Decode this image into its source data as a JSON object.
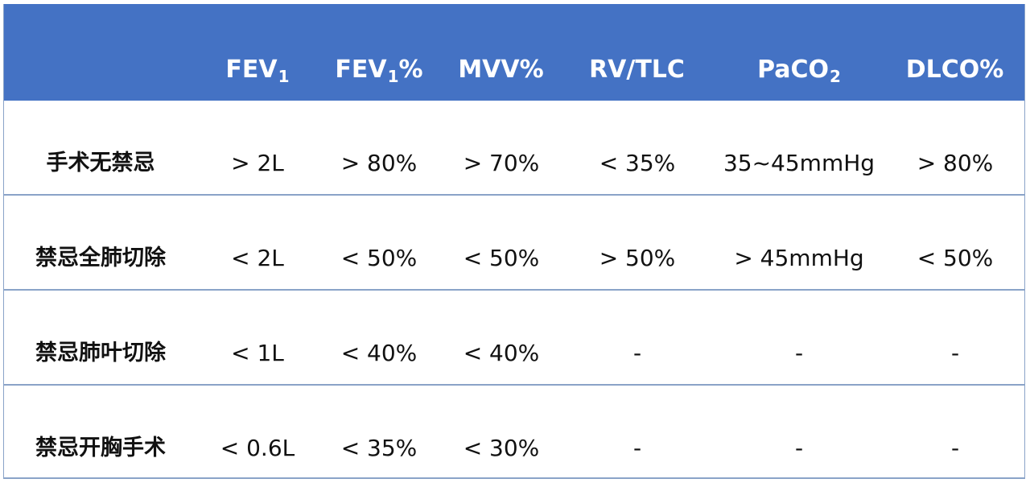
{
  "table": {
    "headers": [
      {
        "main": "FEV",
        "sub": "1",
        "suffix": ""
      },
      {
        "main": "FEV",
        "sub": "1",
        "suffix": "%"
      },
      {
        "main": "MVV%",
        "sub": "",
        "suffix": ""
      },
      {
        "main": "RV/TLC",
        "sub": "",
        "suffix": ""
      },
      {
        "main": "PaCO",
        "sub": "2",
        "suffix": ""
      },
      {
        "main": "DLCO%",
        "sub": "",
        "suffix": ""
      }
    ],
    "rows": [
      {
        "label": "手术无禁忌",
        "cells": [
          "> 2L",
          "> 80%",
          "> 70%",
          "< 35%",
          "35~45mmHg",
          "> 80%"
        ]
      },
      {
        "label": "禁忌全肺切除",
        "cells": [
          "< 2L",
          "< 50%",
          "< 50%",
          "> 50%",
          "> 45mmHg",
          "< 50%"
        ]
      },
      {
        "label": "禁忌肺叶切除",
        "cells": [
          "< 1L",
          "< 40%",
          "< 40%",
          "-",
          "-",
          "-"
        ]
      },
      {
        "label": "禁忌开胸手术",
        "cells": [
          "< 0.6L",
          "< 35%",
          "< 30%",
          "-",
          "-",
          "-"
        ]
      }
    ]
  },
  "colors": {
    "header_bg": "#4472c4",
    "header_text": "#ffffff",
    "grid_line": "#8aa3c8",
    "body_text": "#111111"
  }
}
